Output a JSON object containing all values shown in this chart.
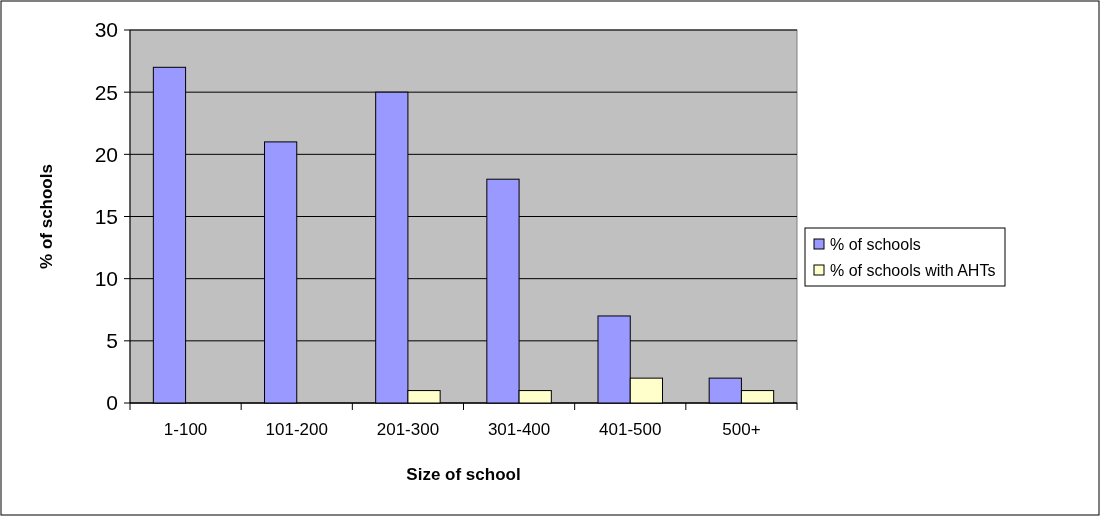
{
  "chart_data": {
    "type": "bar",
    "xlabel": "Size of school",
    "ylabel": "% of schools",
    "categories": [
      "1-100",
      "101-200",
      "201-300",
      "301-400",
      "401-500",
      "500+"
    ],
    "series": [
      {
        "name": "% of schools",
        "color": "#9999ff",
        "values": [
          27,
          21,
          25,
          18,
          7,
          2
        ]
      },
      {
        "name": "% of schools with AHTs",
        "color": "#ffffcc",
        "values": [
          0,
          0,
          1,
          1,
          2,
          1
        ]
      }
    ],
    "ylim": [
      0,
      30
    ],
    "yticks": [
      0,
      5,
      10,
      15,
      20,
      25,
      30
    ],
    "grid": "y",
    "legend": "right"
  }
}
